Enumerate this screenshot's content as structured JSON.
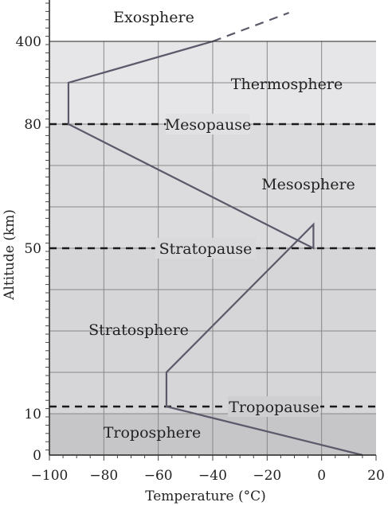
{
  "chart_data": {
    "type": "line",
    "xlabel": "Temperature (°C)",
    "ylabel": "Altitude (km)",
    "xlim": [
      -100,
      20
    ],
    "x_ticks": [
      -100,
      -80,
      -60,
      -40,
      -20,
      0,
      20
    ],
    "x_tick_labels": [
      "−100",
      "−80",
      "−60",
      "−40",
      "−20",
      "0",
      "20"
    ],
    "y_ticks": [
      0,
      10,
      50,
      80,
      400
    ],
    "y_tick_labels": [
      "0",
      "10",
      "50",
      "80",
      "400"
    ],
    "y_scale": "piecewise (axis breaks; unequal spacing between labelled altitudes)",
    "grid": true,
    "series": [
      {
        "values": [
          {
            "x": 15,
            "y": 0
          },
          {
            "x": -57,
            "y": 11
          },
          {
            "x": -57,
            "y": 20
          },
          {
            "x": -3,
            "y": 47
          },
          {
            "x": -3,
            "y": 50
          },
          {
            "x": -93,
            "y": 80
          },
          {
            "x": -93,
            "y": 90
          },
          {
            "x": -40,
            "y": 400
          }
        ],
        "extension": {
          "style": "dashed",
          "values": [
            {
              "x": -40,
              "y": 400
            },
            {
              "x": -12,
              "y": 430
            }
          ]
        }
      }
    ],
    "boundaries": [
      {
        "label": "Tropopause",
        "altitude": 11
      },
      {
        "label": "Stratopause",
        "altitude": 50
      },
      {
        "label": "Mesopause",
        "altitude": 80
      }
    ],
    "layers": [
      {
        "label": "Troposphere",
        "shade": "#c6c6c9"
      },
      {
        "label": "Stratosphere",
        "shade": "#d6d6d9"
      },
      {
        "label": "Mesosphere",
        "shade": "#dcdcde"
      },
      {
        "label": "Thermosphere",
        "shade": "#e6e6e8"
      },
      {
        "label": "Exosphere",
        "shade": "#ffffff"
      }
    ],
    "colors": {
      "line": "#5a5a6a",
      "grid": "#888888",
      "boundary": "#1a1a1a"
    }
  }
}
